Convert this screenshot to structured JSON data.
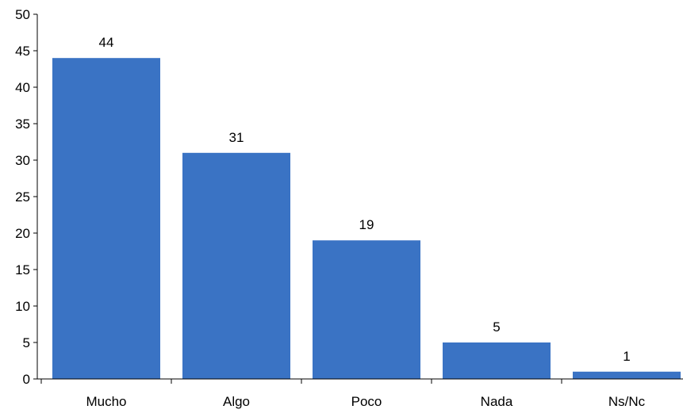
{
  "chart_data": {
    "type": "bar",
    "title": "",
    "xlabel": "",
    "ylabel": "",
    "categories": [
      "Mucho",
      "Algo",
      "Poco",
      "Nada",
      "Ns/Nc"
    ],
    "values": [
      44,
      31,
      19,
      5,
      1
    ],
    "data_labels": [
      "44",
      "31",
      "19",
      "5",
      "1"
    ],
    "ylim": [
      0,
      50
    ],
    "yticks": [
      0,
      5,
      10,
      15,
      20,
      25,
      30,
      35,
      40,
      45,
      50
    ],
    "grid": false,
    "legend": "none",
    "bar_color": "#3A73C4"
  }
}
